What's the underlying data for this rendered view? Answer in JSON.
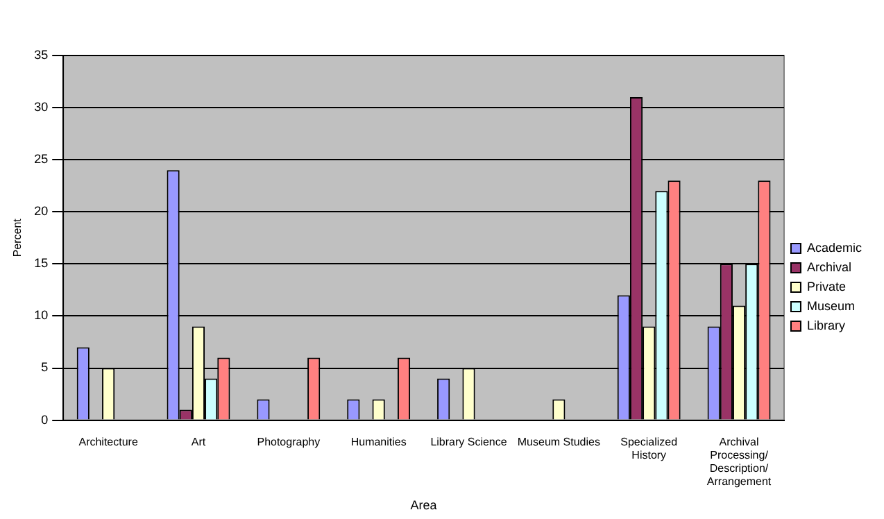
{
  "chart_data": {
    "type": "bar",
    "xlabel": "Area",
    "ylabel": "Percent",
    "categories": [
      "Architecture",
      "Art",
      "Photography",
      "Humanities",
      "Library Science",
      "Museum Studies",
      "Specialized History",
      "Archival Processing/ Description/ Arrangement"
    ],
    "series": [
      {
        "name": "Academic",
        "color": "#9999ff",
        "values": [
          7,
          24,
          2,
          2,
          4,
          0,
          12,
          9
        ]
      },
      {
        "name": "Archival",
        "color": "#993366",
        "values": [
          0,
          1,
          0,
          0,
          0,
          0,
          31,
          15
        ]
      },
      {
        "name": "Private",
        "color": "#ffffcc",
        "values": [
          5,
          9,
          0,
          2,
          5,
          2,
          9,
          11
        ]
      },
      {
        "name": "Museum",
        "color": "#ccffff",
        "values": [
          0,
          4,
          0,
          0,
          0,
          0,
          22,
          15
        ]
      },
      {
        "name": "Library",
        "color": "#ff8080",
        "values": [
          0,
          6,
          6,
          6,
          0,
          0,
          23,
          23
        ]
      }
    ],
    "ylim": [
      0,
      35
    ],
    "yticks": [
      0,
      5,
      10,
      15,
      20,
      25,
      30,
      35
    ],
    "grid": "y",
    "legend": "right"
  }
}
